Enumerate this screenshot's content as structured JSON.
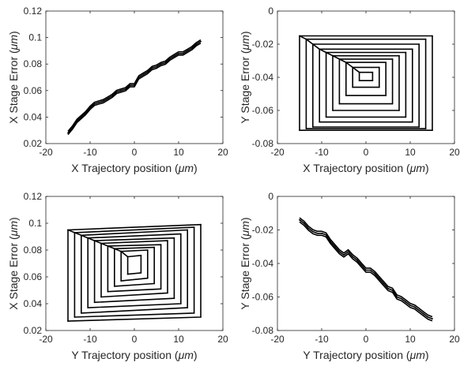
{
  "chart_data": [
    {
      "type": "line",
      "panel": "top-left",
      "xlabel": "X Trajectory position (μm)",
      "ylabel": "X Stage Error (μm)",
      "xlim": [
        -20,
        20
      ],
      "ylim": [
        0.02,
        0.12
      ],
      "xticks": [
        "-20",
        "-10",
        "0",
        "10",
        "20"
      ],
      "yticks": [
        "0.02",
        "0.04",
        "0.06",
        "0.08",
        "0.1",
        "0.12"
      ],
      "grid": false,
      "series": [
        {
          "x": [
            -15,
            -14,
            -13,
            -12,
            -11,
            -10,
            -9,
            -8,
            -7,
            -6,
            -5,
            -4,
            -3,
            -2,
            -1,
            0,
            1,
            2,
            3,
            4,
            5,
            6,
            7,
            8,
            9,
            10,
            11,
            12,
            13,
            14,
            15
          ],
          "y": [
            0.028,
            0.032,
            0.037,
            0.04,
            0.043,
            0.047,
            0.05,
            0.051,
            0.052,
            0.054,
            0.056,
            0.059,
            0.06,
            0.061,
            0.064,
            0.064,
            0.07,
            0.072,
            0.074,
            0.077,
            0.078,
            0.08,
            0.081,
            0.084,
            0.086,
            0.088,
            0.088,
            0.09,
            0.092,
            0.095,
            0.097
          ]
        }
      ]
    },
    {
      "type": "line",
      "panel": "top-right",
      "xlabel": "X Trajectory position (μm)",
      "ylabel": "Y Stage Error (μm)",
      "xlim": [
        -20,
        20
      ],
      "ylim": [
        -0.08,
        0
      ],
      "xticks": [
        "-20",
        "-10",
        "0",
        "10",
        "20"
      ],
      "yticks": [
        "-0.08",
        "-0.06",
        "-0.04",
        "-0.02",
        "0"
      ],
      "grid": false,
      "series": [
        {
          "description_values": "nested rectangular spiral",
          "x": [
            -15,
            15,
            15,
            -15,
            -15,
            -13.5,
            13.5,
            13.5,
            -13.5,
            -13.5,
            -12,
            12,
            12,
            -12,
            -12,
            -10.5,
            10.5,
            10.5,
            -10.5,
            -10.5,
            -9,
            9,
            9,
            -9,
            -9,
            -7.5,
            7.5,
            7.5,
            -7.5,
            -7.5,
            -6,
            6,
            6,
            -6,
            -6,
            -4.5,
            4.5,
            4.5,
            -4.5,
            -4.5,
            -3,
            3,
            3,
            -3,
            -3,
            -1.5,
            1.5,
            1.5,
            -1.5,
            -1.5
          ],
          "y": [
            -0.015,
            -0.015,
            -0.072,
            -0.072,
            -0.015,
            -0.017,
            -0.017,
            -0.071,
            -0.071,
            -0.017,
            -0.02,
            -0.02,
            -0.07,
            -0.07,
            -0.02,
            -0.023,
            -0.023,
            -0.067,
            -0.067,
            -0.023,
            -0.025,
            -0.025,
            -0.064,
            -0.064,
            -0.025,
            -0.027,
            -0.027,
            -0.06,
            -0.06,
            -0.027,
            -0.029,
            -0.029,
            -0.056,
            -0.056,
            -0.029,
            -0.031,
            -0.031,
            -0.051,
            -0.051,
            -0.031,
            -0.034,
            -0.034,
            -0.046,
            -0.046,
            -0.034,
            -0.037,
            -0.037,
            -0.042,
            -0.042,
            -0.037
          ]
        }
      ]
    },
    {
      "type": "line",
      "panel": "bottom-left",
      "xlabel": "Y Trajectory position (μm)",
      "ylabel": "X Stage Error (μm)",
      "xlim": [
        -20,
        20
      ],
      "ylim": [
        0.02,
        0.12
      ],
      "xticks": [
        "-20",
        "-10",
        "0",
        "10",
        "20"
      ],
      "yticks": [
        "0.02",
        "0.04",
        "0.06",
        "0.08",
        "0.1",
        "0.12"
      ],
      "grid": false,
      "series": [
        {
          "description_values": "nested skewed rectangular spiral",
          "x": [
            -15,
            15,
            15,
            -15,
            -15,
            -13.5,
            13.5,
            13.5,
            -13.5,
            -13.5,
            -12,
            12,
            12,
            -12,
            -12,
            -10.5,
            10.5,
            10.5,
            -10.5,
            -10.5,
            -9,
            9,
            9,
            -9,
            -9,
            -7.5,
            7.5,
            7.5,
            -7.5,
            -7.5,
            -6,
            6,
            6,
            -6,
            -6,
            -4.5,
            4.5,
            4.5,
            -4.5,
            -4.5,
            -3,
            3,
            3,
            -3,
            -3,
            -1.5,
            1.5,
            1.5,
            -1.5,
            -1.5
          ],
          "y": [
            0.095,
            0.099,
            0.03,
            0.027,
            0.095,
            0.093,
            0.097,
            0.033,
            0.03,
            0.093,
            0.091,
            0.095,
            0.037,
            0.033,
            0.091,
            0.089,
            0.092,
            0.04,
            0.037,
            0.089,
            0.087,
            0.089,
            0.044,
            0.041,
            0.087,
            0.085,
            0.087,
            0.048,
            0.045,
            0.085,
            0.083,
            0.084,
            0.051,
            0.049,
            0.083,
            0.081,
            0.082,
            0.055,
            0.053,
            0.081,
            0.079,
            0.08,
            0.059,
            0.057,
            0.079,
            0.075,
            0.076,
            0.063,
            0.062,
            0.075
          ]
        }
      ]
    },
    {
      "type": "line",
      "panel": "bottom-right",
      "xlabel": "Y Trajectory position (μm)",
      "ylabel": "Y Stage Error (μm)",
      "xlim": [
        -20,
        20
      ],
      "ylim": [
        -0.08,
        0
      ],
      "xticks": [
        "-20",
        "-10",
        "0",
        "10",
        "20"
      ],
      "yticks": [
        "-0.08",
        "-0.06",
        "-0.04",
        "-0.02",
        "0"
      ],
      "grid": false,
      "series": [
        {
          "x": [
            -15,
            -14,
            -13,
            -12,
            -11,
            -10,
            -9,
            -8,
            -7,
            -6,
            -5,
            -4,
            -3,
            -2,
            -1,
            0,
            1,
            2,
            3,
            4,
            5,
            6,
            7,
            8,
            9,
            10,
            11,
            12,
            13,
            14,
            15
          ],
          "y": [
            -0.014,
            -0.016,
            -0.019,
            -0.021,
            -0.022,
            -0.022,
            -0.023,
            -0.027,
            -0.03,
            -0.033,
            -0.035,
            -0.033,
            -0.036,
            -0.038,
            -0.041,
            -0.044,
            -0.044,
            -0.046,
            -0.049,
            -0.052,
            -0.055,
            -0.056,
            -0.06,
            -0.061,
            -0.063,
            -0.065,
            -0.066,
            -0.068,
            -0.07,
            -0.072,
            -0.073
          ]
        }
      ]
    }
  ]
}
